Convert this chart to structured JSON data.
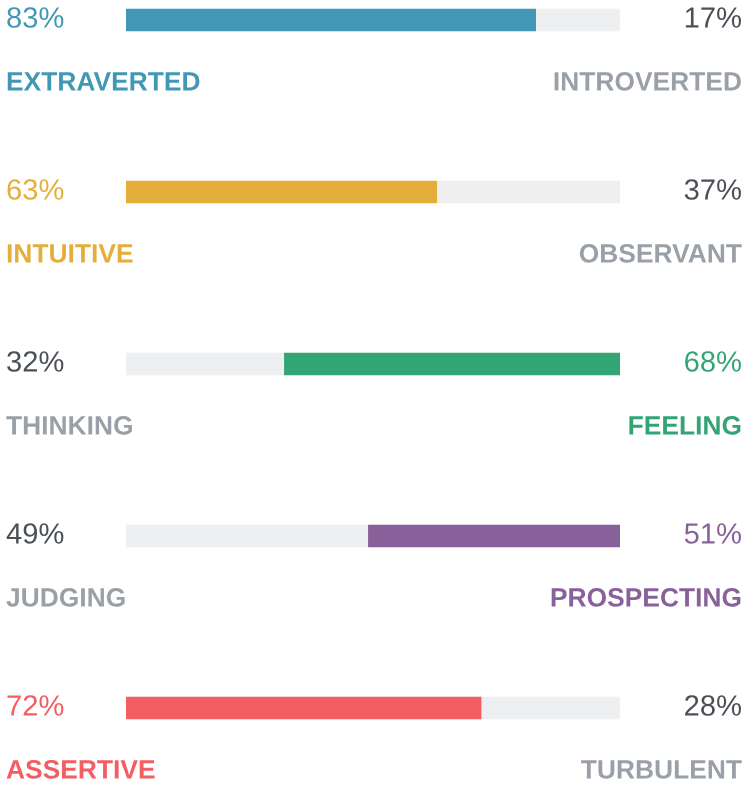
{
  "chart_data": {
    "type": "bar",
    "orientation": "horizontal",
    "stacked": true,
    "categories": [
      "EXTRAVERTED",
      "INTUITIVE",
      "THINKING",
      "JUDGING",
      "ASSERTIVE"
    ],
    "series": [
      {
        "values": [
          83,
          63,
          32,
          49,
          72
        ],
        "value_labels": [
          "83%",
          "63%",
          "32%",
          "49%",
          "72%"
        ],
        "colors": [
          "#4298b4",
          "#e4ae3a",
          "#eeeff1",
          "#eeeff1",
          "#f25e62"
        ]
      },
      {
        "values": [
          17,
          37,
          68,
          51,
          28
        ],
        "value_labels": [
          "17%",
          "37%",
          "68%",
          "51%",
          "28%"
        ],
        "colors": [
          "#eeeff1",
          "#eeeff1",
          "#33a474",
          "#88619a",
          "#eeeff1"
        ]
      }
    ],
    "annotations": [
      "INTROVERTED",
      "OBSERVANT",
      "FEELING",
      "PROSPECTING",
      "TURBULENT"
    ],
    "xlim": [
      0,
      100
    ]
  }
}
